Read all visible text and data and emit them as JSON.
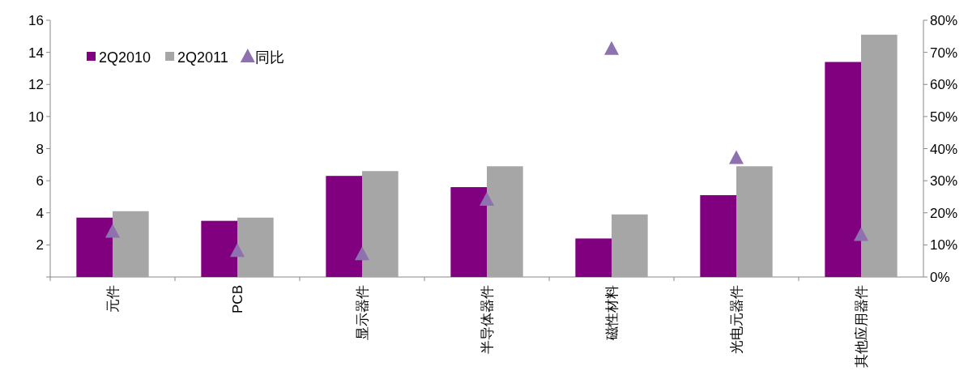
{
  "chart_data": {
    "type": "bar",
    "categories": [
      "元件",
      "PCB",
      "显示器件",
      "半导体器件",
      "磁性材料",
      "光电元器件",
      "其他应用器件"
    ],
    "series": [
      {
        "name": "2Q2010",
        "color": "#800080",
        "values": [
          3.7,
          3.5,
          6.3,
          5.6,
          2.4,
          5.1,
          13.4
        ]
      },
      {
        "name": "2Q2011",
        "color": "#a6a6a6",
        "values": [
          4.1,
          3.7,
          6.6,
          6.9,
          3.9,
          6.9,
          15.1
        ]
      },
      {
        "name": "同比",
        "color": "#8e72b0",
        "type": "scatter",
        "axis": "y2",
        "marker": "triangle",
        "values": [
          14,
          8,
          7,
          24,
          71,
          37,
          13
        ]
      }
    ],
    "ylim": [
      0,
      16
    ],
    "yticks": [
      {
        "value": 0,
        "label": null
      },
      2,
      4,
      6,
      8,
      10,
      12,
      14,
      16
    ],
    "y2lim": [
      0,
      80
    ],
    "y2ticks": [
      {
        "value": 0,
        "label": "0%"
      },
      {
        "value": 10,
        "label": "10%"
      },
      {
        "value": 20,
        "label": "20%"
      },
      {
        "value": 30,
        "label": "30%"
      },
      {
        "value": 40,
        "label": "40%"
      },
      {
        "value": 50,
        "label": "50%"
      },
      {
        "value": 60,
        "label": "60%"
      },
      {
        "value": 70,
        "label": "70%"
      },
      {
        "value": 80,
        "label": "80%"
      }
    ],
    "legend": "top left"
  }
}
